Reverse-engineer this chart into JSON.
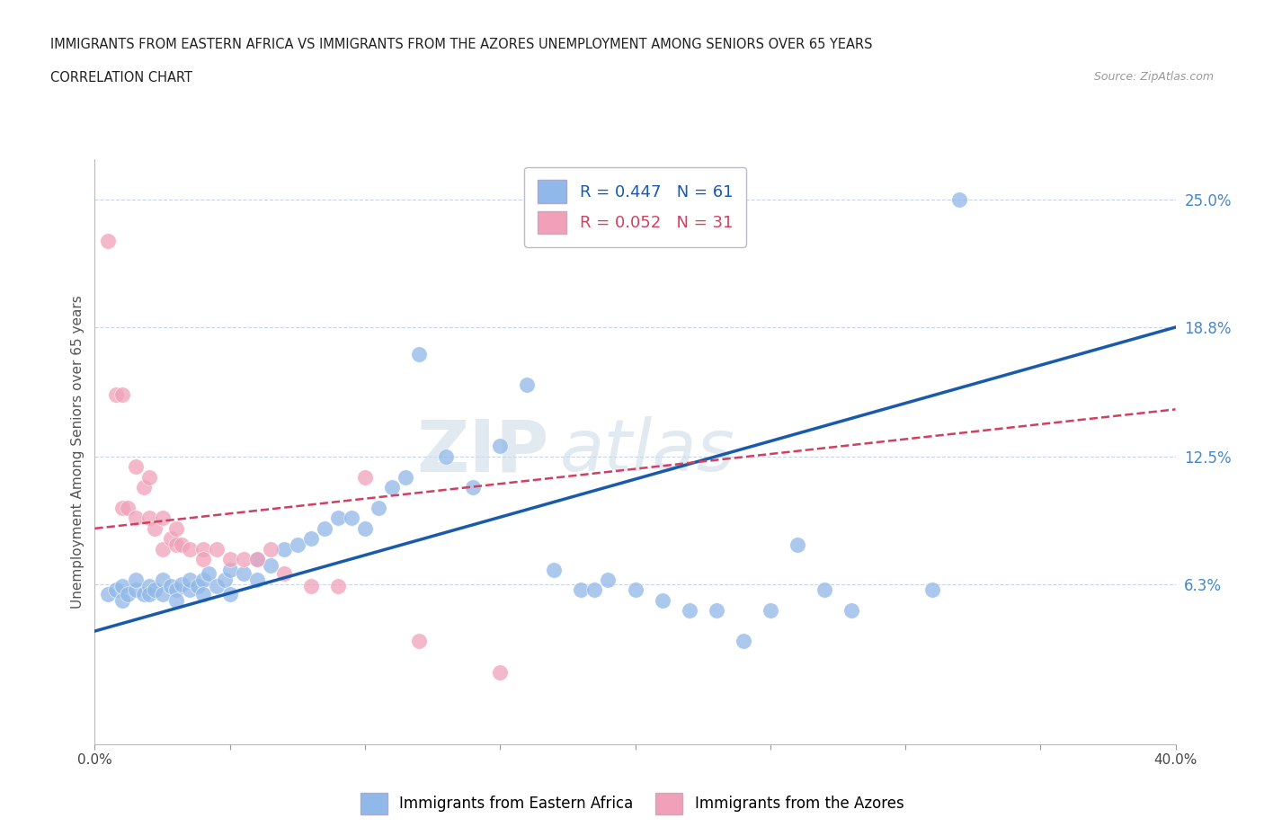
{
  "title_line1": "IMMIGRANTS FROM EASTERN AFRICA VS IMMIGRANTS FROM THE AZORES UNEMPLOYMENT AMONG SENIORS OVER 65 YEARS",
  "title_line2": "CORRELATION CHART",
  "source_text": "Source: ZipAtlas.com",
  "ylabel": "Unemployment Among Seniors over 65 years",
  "xlim": [
    0.0,
    0.4
  ],
  "ylim": [
    -0.015,
    0.27
  ],
  "xticks": [
    0.0,
    0.05,
    0.1,
    0.15,
    0.2,
    0.25,
    0.3,
    0.35,
    0.4
  ],
  "xticklabels": [
    "0.0%",
    "",
    "",
    "",
    "",
    "",
    "",
    "",
    "40.0%"
  ],
  "ytick_labels_right": [
    "25.0%",
    "18.8%",
    "12.5%",
    "6.3%"
  ],
  "ytick_vals_right": [
    0.25,
    0.188,
    0.125,
    0.063
  ],
  "r_blue": 0.447,
  "n_blue": 61,
  "r_pink": 0.052,
  "n_pink": 31,
  "legend_label_blue": "Immigrants from Eastern Africa",
  "legend_label_pink": "Immigrants from the Azores",
  "color_blue": "#90b8e8",
  "color_pink": "#f0a0b8",
  "line_color_blue": "#1a5aaa",
  "line_color_pink": "#d04060",
  "watermark_zip": "ZIP",
  "watermark_atlas": "atlas",
  "blue_scatter_x": [
    0.005,
    0.008,
    0.01,
    0.01,
    0.012,
    0.015,
    0.015,
    0.018,
    0.02,
    0.02,
    0.022,
    0.025,
    0.025,
    0.028,
    0.03,
    0.03,
    0.032,
    0.035,
    0.035,
    0.038,
    0.04,
    0.04,
    0.042,
    0.045,
    0.048,
    0.05,
    0.05,
    0.055,
    0.06,
    0.06,
    0.065,
    0.07,
    0.075,
    0.08,
    0.085,
    0.09,
    0.095,
    0.1,
    0.105,
    0.11,
    0.115,
    0.12,
    0.13,
    0.14,
    0.15,
    0.16,
    0.17,
    0.18,
    0.185,
    0.19,
    0.2,
    0.21,
    0.22,
    0.23,
    0.24,
    0.25,
    0.26,
    0.27,
    0.28,
    0.31,
    0.32
  ],
  "blue_scatter_y": [
    0.058,
    0.06,
    0.062,
    0.055,
    0.058,
    0.06,
    0.065,
    0.058,
    0.062,
    0.058,
    0.06,
    0.065,
    0.058,
    0.062,
    0.06,
    0.055,
    0.063,
    0.06,
    0.065,
    0.062,
    0.065,
    0.058,
    0.068,
    0.062,
    0.065,
    0.07,
    0.058,
    0.068,
    0.065,
    0.075,
    0.072,
    0.08,
    0.082,
    0.085,
    0.09,
    0.095,
    0.095,
    0.09,
    0.1,
    0.11,
    0.115,
    0.175,
    0.125,
    0.11,
    0.13,
    0.16,
    0.07,
    0.06,
    0.06,
    0.065,
    0.06,
    0.055,
    0.05,
    0.05,
    0.035,
    0.05,
    0.082,
    0.06,
    0.05,
    0.06,
    0.25
  ],
  "pink_scatter_x": [
    0.005,
    0.008,
    0.01,
    0.01,
    0.012,
    0.015,
    0.015,
    0.018,
    0.02,
    0.02,
    0.022,
    0.025,
    0.025,
    0.028,
    0.03,
    0.03,
    0.032,
    0.035,
    0.04,
    0.04,
    0.045,
    0.05,
    0.055,
    0.06,
    0.065,
    0.07,
    0.08,
    0.09,
    0.1,
    0.12,
    0.15
  ],
  "pink_scatter_y": [
    0.23,
    0.155,
    0.155,
    0.1,
    0.1,
    0.12,
    0.095,
    0.11,
    0.095,
    0.115,
    0.09,
    0.095,
    0.08,
    0.085,
    0.09,
    0.082,
    0.082,
    0.08,
    0.08,
    0.075,
    0.08,
    0.075,
    0.075,
    0.075,
    0.08,
    0.068,
    0.062,
    0.062,
    0.115,
    0.035,
    0.02
  ],
  "blue_line_x": [
    0.0,
    0.4
  ],
  "blue_line_y": [
    0.04,
    0.188
  ],
  "pink_line_x": [
    0.0,
    0.4
  ],
  "pink_line_y": [
    0.09,
    0.148
  ],
  "grid_color": "#c8d4e8",
  "bg_color": "#ffffff",
  "title_fontsize": 11,
  "axis_label_fontsize": 11
}
